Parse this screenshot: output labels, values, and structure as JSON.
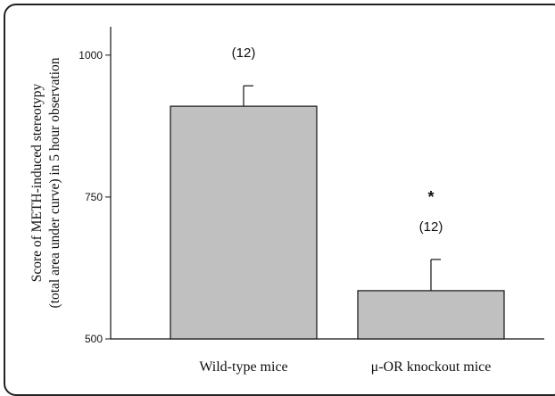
{
  "chart_data": {
    "type": "bar",
    "categories": [
      "Wild-type mice",
      "μ-OR knockout mice"
    ],
    "values": [
      910,
      585
    ],
    "errors": [
      36,
      55
    ],
    "annotations": [
      [
        "(12)"
      ],
      [
        "*",
        "(12)"
      ]
    ],
    "ylabel_lines": [
      "Score of METH-induced stereotypy",
      "(total area under curve) in 5 hour observation"
    ],
    "ylim": [
      500,
      1050
    ],
    "yticks": [
      500,
      750,
      1000
    ],
    "bar_color": "#c0c0c0",
    "grid": false
  }
}
